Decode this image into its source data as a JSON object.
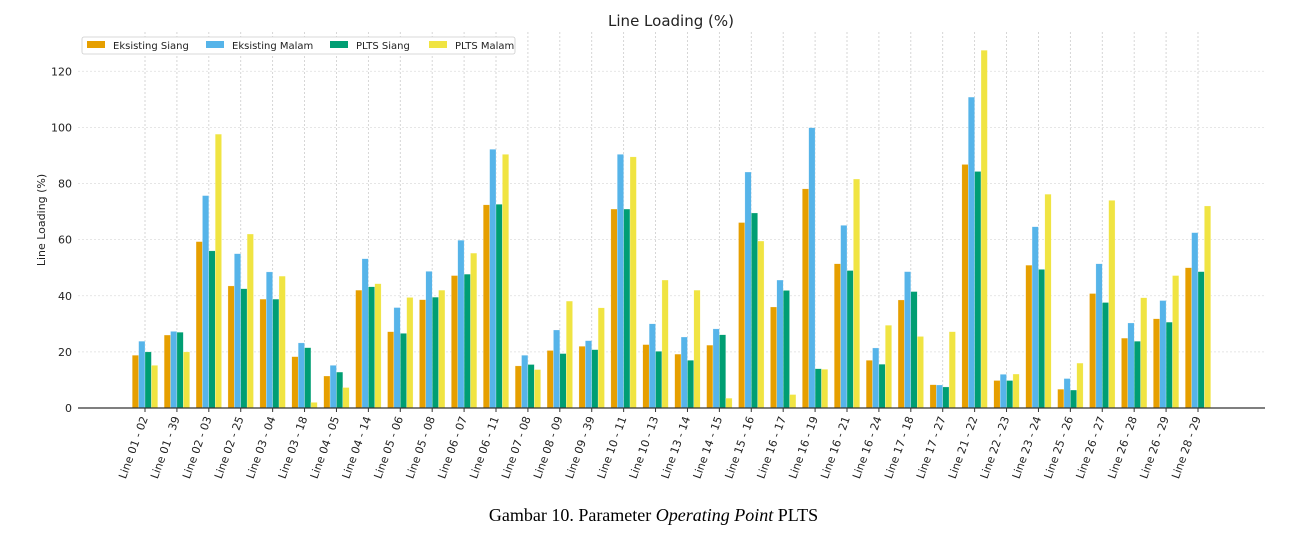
{
  "chart_data": {
    "type": "bar",
    "title": "Line Loading (%)",
    "xlabel": "",
    "ylabel": "Line Loading (%)",
    "ylim": [
      0,
      134
    ],
    "yticks": [
      0,
      20,
      40,
      60,
      80,
      100,
      120
    ],
    "grid": true,
    "legend_placement": "top-left",
    "categories": [
      "Line 01 - 02",
      "Line 01 - 39",
      "Line 02 - 03",
      "Line 02 - 25",
      "Line 03 - 04",
      "Line 03 - 18",
      "Line 04 - 05",
      "Line 04 - 14",
      "Line 05 - 06",
      "Line 05 - 08",
      "Line 06 - 07",
      "Line 06 - 11",
      "Line 07 - 08",
      "Line 08 - 09",
      "Line 09 - 39",
      "Line 10 - 11",
      "Line 10 - 13",
      "Line 13 - 14",
      "Line 14 - 15",
      "Line 15 - 16",
      "Line 16 - 17",
      "Line 16 - 19",
      "Line 16 - 21",
      "Line 16 - 24",
      "Line 17 - 18",
      "Line 17 - 27",
      "Line 21 - 22",
      "Line 22 - 23",
      "Line 23 - 24",
      "Line 25 - 26",
      "Line 26 - 27",
      "Line 26 - 28",
      "Line 26 - 29",
      "Line 28 - 29"
    ],
    "series": [
      {
        "name": "Eksisting Siang",
        "color": "#E69F00",
        "values": [
          18.8,
          26,
          59.3,
          43.5,
          38.8,
          18.3,
          11.4,
          42,
          27.2,
          38.6,
          47.2,
          72.4,
          15,
          20.5,
          22,
          70.9,
          22.6,
          19.2,
          22.4,
          66.1,
          36,
          78.1,
          51.4,
          17,
          38.5,
          8.3,
          86.8,
          9.8,
          50.9,
          6.7,
          40.8,
          24.9,
          31.8,
          50
        ]
      },
      {
        "name": "Eksisting Malam",
        "color": "#56B4E9",
        "values": [
          23.8,
          27.3,
          75.7,
          55,
          48.5,
          23.2,
          15.2,
          53.2,
          35.8,
          48.7,
          59.8,
          92.2,
          18.8,
          27.8,
          24,
          90.4,
          30,
          25.3,
          28.2,
          84.1,
          45.6,
          99.9,
          65.1,
          21.4,
          48.6,
          8.2,
          110.8,
          12,
          64.6,
          10.5,
          51.4,
          30.3,
          38.3,
          62.5
        ]
      },
      {
        "name": "PLTS Siang",
        "color": "#009E73",
        "values": [
          20,
          27,
          56,
          42.5,
          38.8,
          21.5,
          12.8,
          43.2,
          26.6,
          39.5,
          47.7,
          72.6,
          15.5,
          19.4,
          20.8,
          70.9,
          20.2,
          17,
          26.1,
          69.5,
          41.9,
          14,
          49,
          15.6,
          41.5,
          7.5,
          84.3,
          9.8,
          49.4,
          6.4,
          37.6,
          23.8,
          30.6,
          48.6
        ]
      },
      {
        "name": "PLTS Malam",
        "color": "#F0E442",
        "values": [
          15.2,
          20,
          97.6,
          62,
          47,
          2,
          7.3,
          44.3,
          39.4,
          42,
          55.2,
          90.4,
          13.7,
          38.1,
          35.7,
          89.5,
          45.6,
          42,
          3.5,
          59.5,
          4.8,
          13.8,
          81.6,
          29.5,
          25.5,
          27.2,
          127.5,
          12.1,
          76.2,
          16,
          74,
          39.3,
          47.2,
          72
        ]
      }
    ]
  },
  "caption": {
    "prefix": "Gambar 10. Parameter ",
    "italic": "Operating Point",
    "suffix": " PLTS"
  }
}
